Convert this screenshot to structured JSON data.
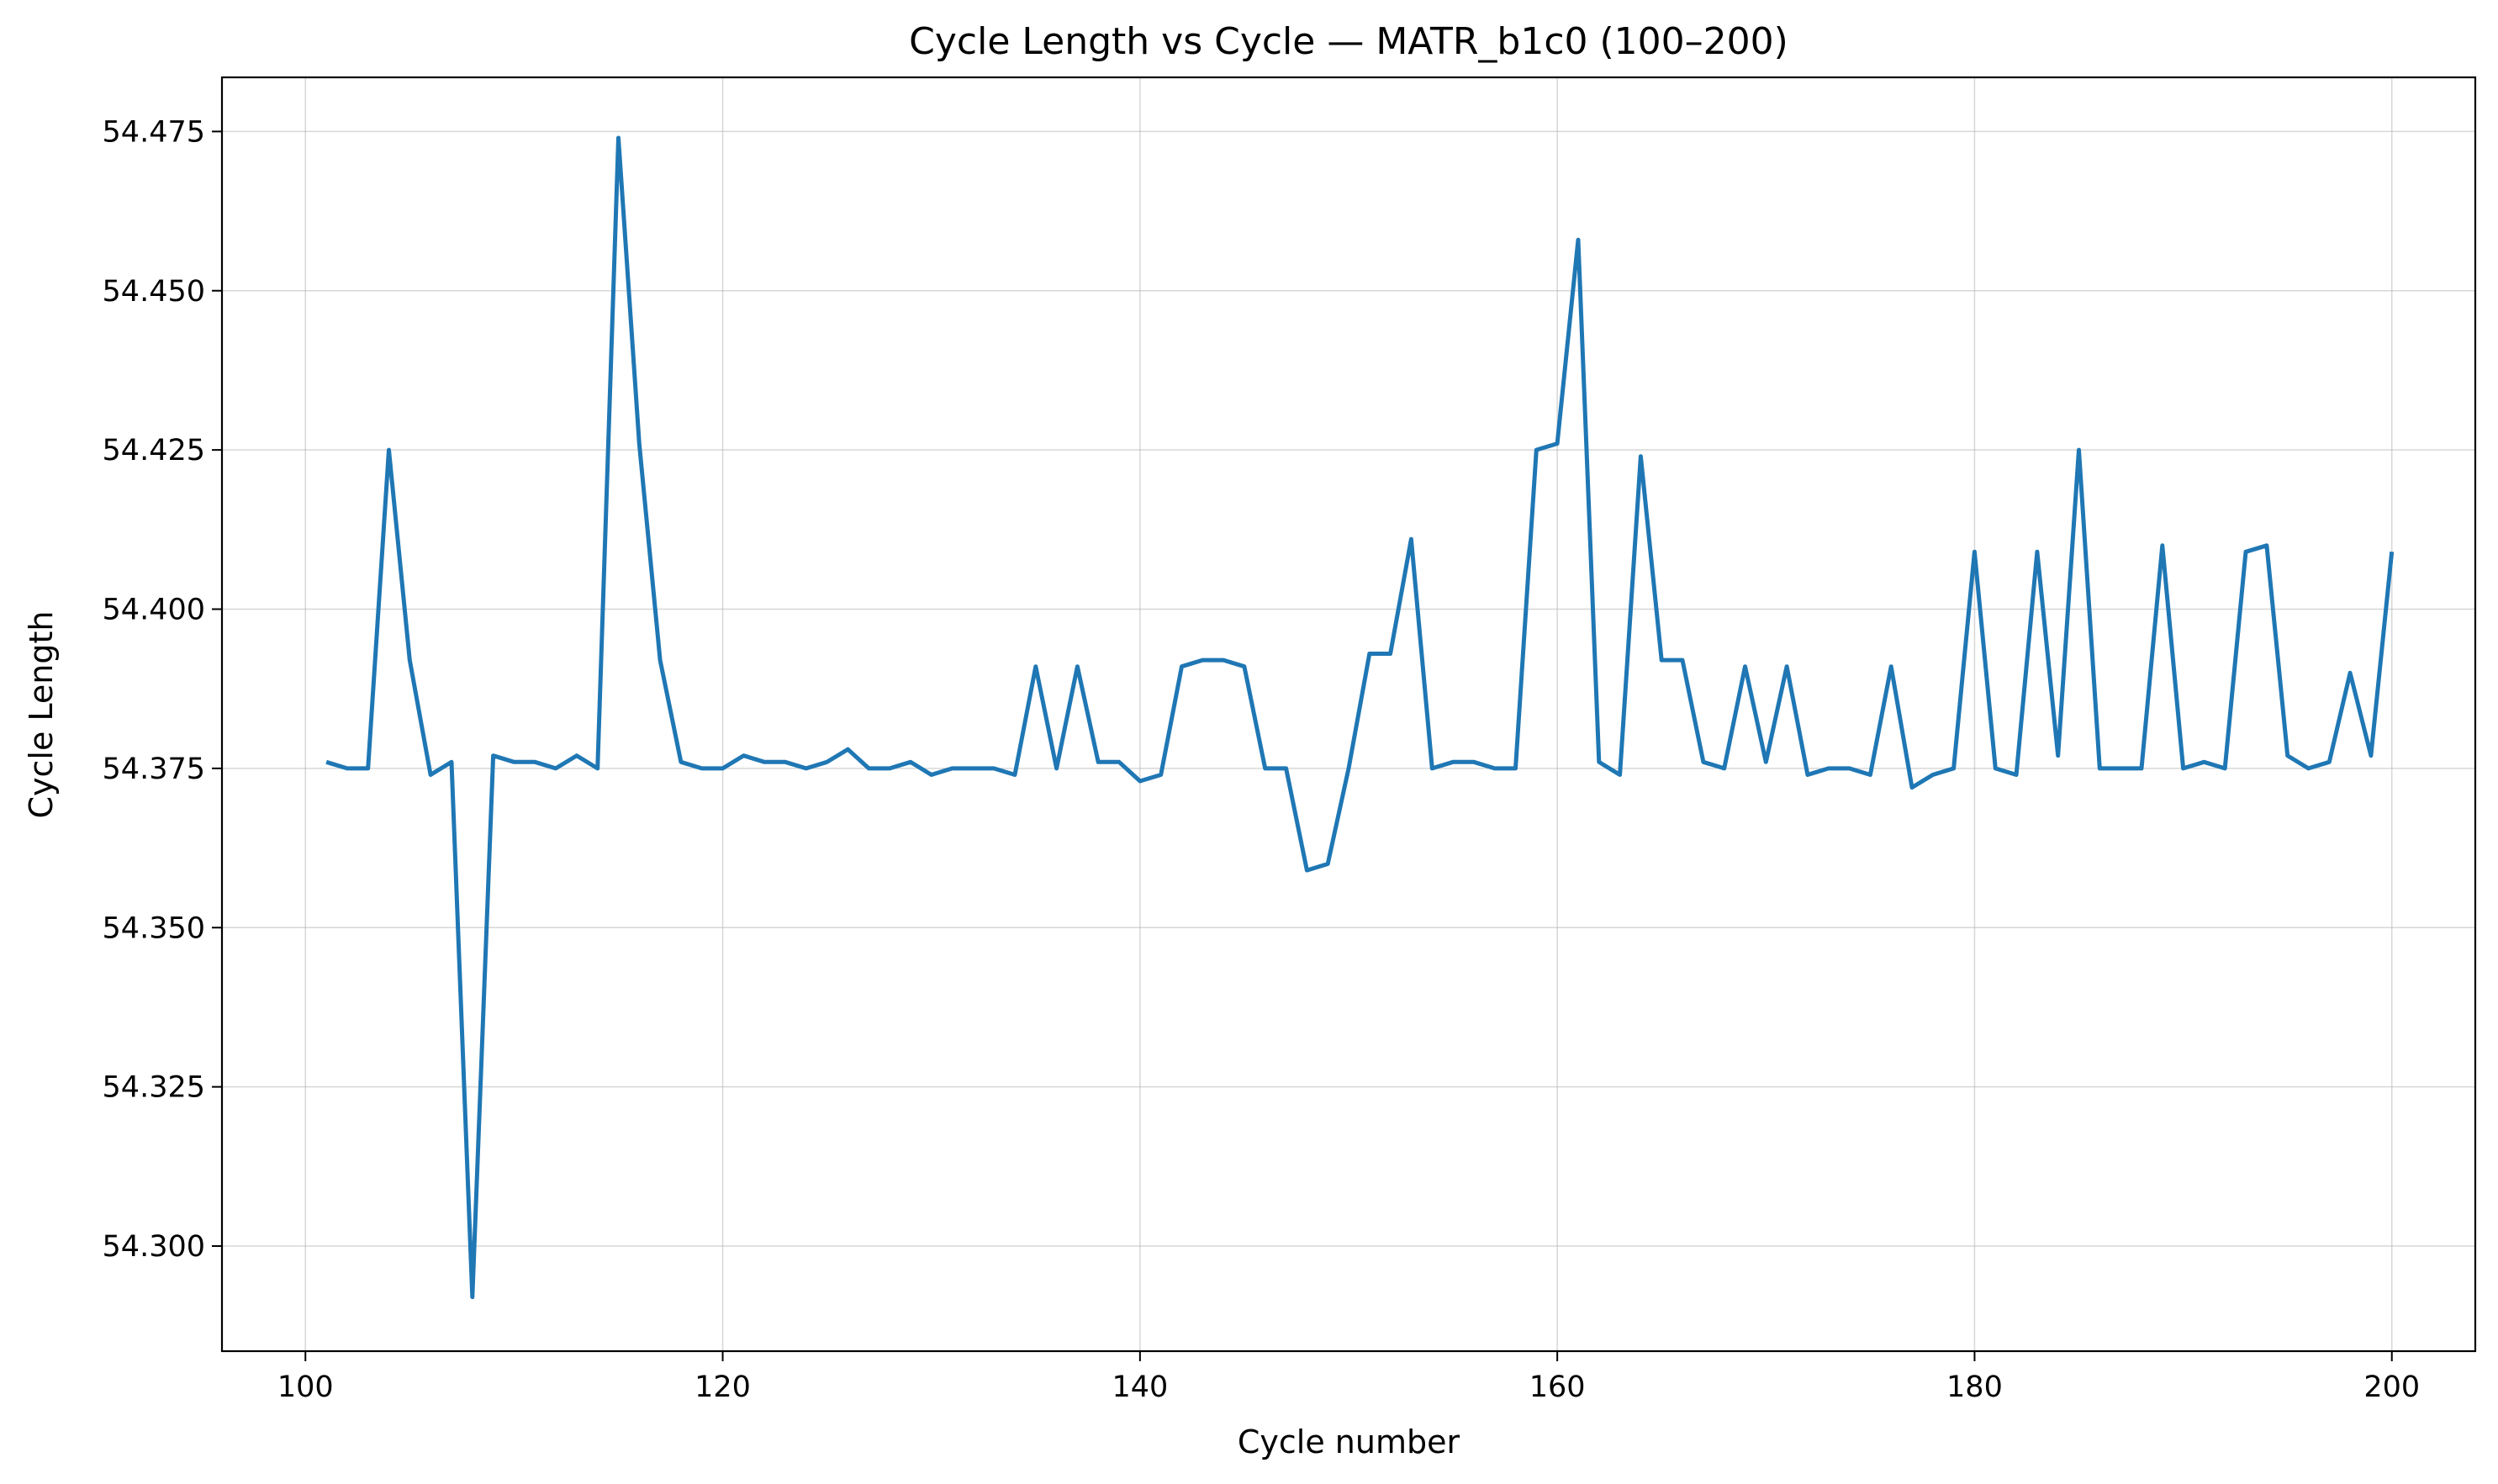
{
  "chart_data": {
    "type": "line",
    "title": "Cycle Length vs Cycle — MATR_b1c0 (100–200)",
    "xlabel": "Cycle number",
    "ylabel": "Cycle Length",
    "xlim": [
      96,
      204
    ],
    "ylim": [
      54.2835,
      54.4835
    ],
    "xticks": [
      100,
      120,
      140,
      160,
      180,
      200
    ],
    "yticks": [
      54.3,
      54.325,
      54.35,
      54.375,
      54.4,
      54.425,
      54.45,
      54.475
    ],
    "ytick_labels": [
      "54.300",
      "54.325",
      "54.350",
      "54.375",
      "54.400",
      "54.425",
      "54.450",
      "54.475"
    ],
    "grid": true,
    "legend": "none",
    "series": [
      {
        "color": "#1f77b4",
        "x": [
          101,
          102,
          103,
          104,
          105,
          106,
          107,
          108,
          109,
          110,
          111,
          112,
          113,
          114,
          115,
          116,
          117,
          118,
          119,
          120,
          121,
          122,
          123,
          124,
          125,
          126,
          127,
          128,
          129,
          130,
          131,
          132,
          133,
          134,
          135,
          136,
          137,
          138,
          139,
          140,
          141,
          142,
          143,
          144,
          145,
          146,
          147,
          148,
          149,
          150,
          151,
          152,
          153,
          154,
          155,
          156,
          157,
          158,
          159,
          160,
          161,
          162,
          163,
          164,
          165,
          166,
          167,
          168,
          169,
          170,
          171,
          172,
          173,
          174,
          175,
          176,
          177,
          178,
          179,
          180,
          181,
          182,
          183,
          184,
          185,
          186,
          187,
          188,
          189,
          190,
          191,
          192,
          193,
          194,
          195,
          196,
          197,
          198,
          199,
          200
        ],
        "values": [
          54.376,
          54.375,
          54.375,
          54.425,
          54.392,
          54.374,
          54.376,
          54.292,
          54.377,
          54.376,
          54.376,
          54.375,
          54.377,
          54.375,
          54.474,
          54.426,
          54.392,
          54.376,
          54.375,
          54.375,
          54.377,
          54.376,
          54.376,
          54.375,
          54.376,
          54.378,
          54.375,
          54.375,
          54.376,
          54.374,
          54.375,
          54.375,
          54.375,
          54.374,
          54.391,
          54.375,
          54.391,
          54.376,
          54.376,
          54.373,
          54.374,
          54.391,
          54.392,
          54.392,
          54.391,
          54.375,
          54.375,
          54.359,
          54.36,
          54.375,
          54.393,
          54.393,
          54.411,
          54.375,
          54.376,
          54.376,
          54.375,
          54.375,
          54.425,
          54.426,
          54.458,
          54.376,
          54.374,
          54.424,
          54.392,
          54.392,
          54.376,
          54.375,
          54.391,
          54.376,
          54.391,
          54.374,
          54.375,
          54.375,
          54.374,
          54.391,
          54.372,
          54.374,
          54.375,
          54.409,
          54.375,
          54.374,
          54.409,
          54.377,
          54.425,
          54.375,
          54.375,
          54.375,
          54.41,
          54.375,
          54.376,
          54.375,
          54.409,
          54.41,
          54.377,
          54.375,
          54.376,
          54.39,
          54.377,
          54.409
        ]
      }
    ]
  }
}
